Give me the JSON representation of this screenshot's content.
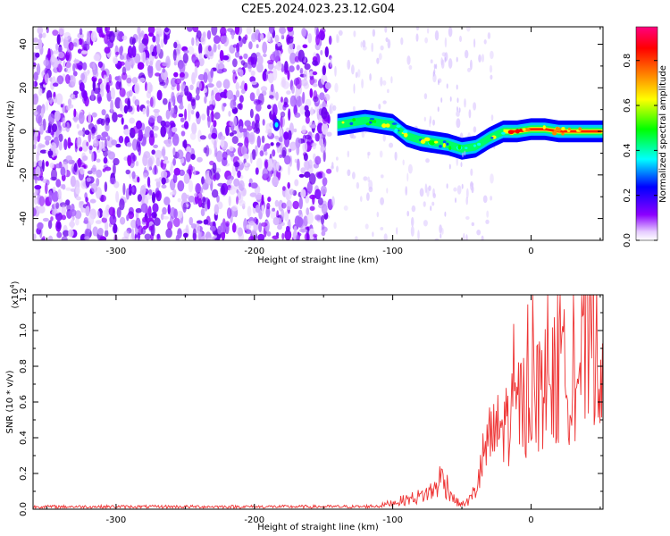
{
  "title": "C2E5.2024.023.23.12.G04",
  "chart_data": [
    {
      "type": "heatmap",
      "xlabel": "Height of straight line (km)",
      "ylabel": "Frequency (Hz)",
      "xlim": [
        -360,
        52
      ],
      "ylim": [
        -50,
        48
      ],
      "xticks": [
        -300,
        -200,
        -100,
        0
      ],
      "yticks": [
        -40,
        -20,
        0,
        20,
        40
      ],
      "ridge_center_hz": {
        "x": [
          -140,
          -130,
          -120,
          -110,
          -100,
          -90,
          -80,
          -70,
          -60,
          -50,
          -40,
          -30,
          -20,
          -10,
          0,
          10,
          20,
          30,
          40,
          52
        ],
        "y": [
          3,
          4,
          5,
          4,
          3,
          -2,
          -4,
          -5,
          -6,
          -8,
          -7,
          -3,
          0,
          0,
          1,
          1,
          0,
          0,
          0,
          0
        ]
      },
      "colorbar": {
        "label": "Normalized spectral amplitude",
        "range": [
          0.0,
          0.95
        ],
        "ticks": [
          0.0,
          0.2,
          0.4,
          0.6,
          0.8
        ],
        "tick_labels": [
          "0.0",
          "0.2",
          "0.4",
          "0.6",
          "0.8"
        ],
        "colors": [
          "#ffffff",
          "#8b00ff",
          "#0000ff",
          "#00ffff",
          "#00ff00",
          "#ffff00",
          "#ff7f00",
          "#ff0000",
          "#ff0080"
        ]
      }
    },
    {
      "type": "line",
      "xlabel": "Height of straight line (km)",
      "ylabel": "SNR (10 * v/v)",
      "scale_label": "(x10",
      "scale_exp": "4",
      "scale_close": ")",
      "xlim": [
        -360,
        52
      ],
      "ylim": [
        0.0,
        1.2
      ],
      "xticks": [
        -300,
        -200,
        -100,
        0
      ],
      "yticks": [
        0.0,
        0.2,
        0.4,
        0.6,
        0.8,
        1.0,
        1.2
      ],
      "ytick_labels": [
        "0.0",
        "0.2",
        "0.4",
        "0.6",
        "0.8",
        "1.0",
        "1.2"
      ],
      "series": [
        {
          "color": "#ee3333",
          "x": [
            -360,
            -300,
            -200,
            -130,
            -110,
            -100,
            -90,
            -80,
            -70,
            -65,
            -60,
            -55,
            -50,
            -45,
            -40,
            -35,
            -30,
            -25,
            -20,
            -15,
            -10,
            -5,
            0,
            10,
            20,
            30,
            40,
            45,
            52
          ],
          "y": [
            0.01,
            0.01,
            0.01,
            0.015,
            0.02,
            0.04,
            0.06,
            0.08,
            0.12,
            0.2,
            0.14,
            0.05,
            0.03,
            0.05,
            0.12,
            0.3,
            0.45,
            0.5,
            0.55,
            0.6,
            0.7,
            0.68,
            0.75,
            0.8,
            0.85,
            0.9,
            1.0,
            1.15,
            1.05
          ]
        }
      ]
    }
  ]
}
